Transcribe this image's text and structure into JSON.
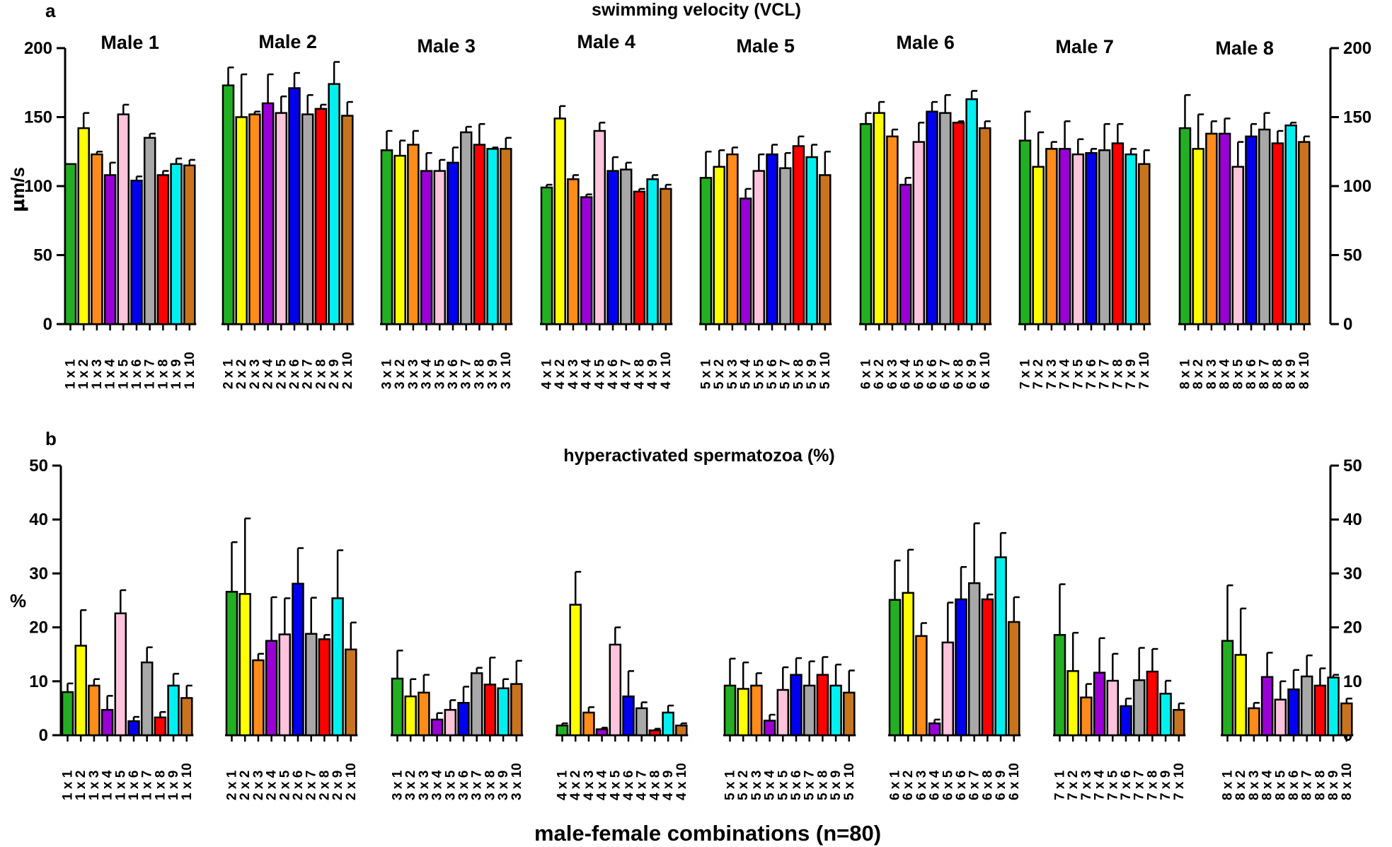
{
  "figure_xlabel": "male-female combinations (n=80)",
  "colors": [
    "#22b022",
    "#ffff00",
    "#ff8c1a",
    "#9a00d6",
    "#ffc4dc",
    "#0000f0",
    "#a8a8a8",
    "#ff0000",
    "#00f0f0",
    "#c8741e"
  ],
  "chart_data": [
    {
      "type": "bar",
      "panel": "a",
      "title": "swimming velocity (VCL)",
      "ylabel_prefix": "μ",
      "ylabel_suffix": "m/s",
      "ylim": [
        0,
        200
      ],
      "yticks": [
        0,
        50,
        100,
        150,
        200
      ],
      "groups": [
        {
          "name": "Male 1",
          "categories": [
            "1 x 1",
            "1 x 2",
            "1 x 3",
            "1 x 4",
            "1 x 5",
            "1 x 6",
            "1 x 7",
            "1 x 8",
            "1 x 9",
            "1 x 10"
          ],
          "values": [
            116,
            142,
            123,
            108,
            152,
            104,
            135,
            108,
            116,
            115
          ],
          "errors": [
            0,
            11,
            2,
            9,
            7,
            3,
            3,
            3,
            4,
            4
          ]
        },
        {
          "name": "Male 2",
          "categories": [
            "2 x 1",
            "2 x 2",
            "2 x 3",
            "2 x 4",
            "2 x 5",
            "2 x 6",
            "2 x 7",
            "2 x 8",
            "2 x 9",
            "2 x 10"
          ],
          "values": [
            173,
            150,
            152,
            160,
            153,
            171,
            152,
            156,
            174,
            151
          ],
          "errors": [
            13,
            31,
            2,
            21,
            12,
            11,
            14,
            3,
            16,
            10
          ]
        },
        {
          "name": "Male 3",
          "categories": [
            "3 x 1",
            "3 x 2",
            "3 x 3",
            "3 x 4",
            "3 x 5",
            "3 x 6",
            "3 x 7",
            "3 x 8",
            "3 x 9",
            "3 x 10"
          ],
          "values": [
            126,
            122,
            130,
            111,
            111,
            117,
            139,
            130,
            127,
            127
          ],
          "errors": [
            14,
            11,
            10,
            13,
            8,
            11,
            4,
            15,
            1,
            8
          ]
        },
        {
          "name": "Male 4",
          "categories": [
            "4 x 1",
            "4 x 2",
            "4 x 3",
            "4 x 4",
            "4 x 5",
            "4 x 6",
            "4 x 7",
            "4 x 8",
            "4 x 9",
            "4 x 10"
          ],
          "values": [
            99,
            149,
            105,
            92,
            140,
            111,
            112,
            96,
            105,
            98
          ],
          "errors": [
            2,
            9,
            3,
            2,
            6,
            10,
            5,
            2,
            3,
            3
          ]
        },
        {
          "name": "Male 5",
          "categories": [
            "5 x 1",
            "5 x 2",
            "5 x 3",
            "5 x 4",
            "5 x 5",
            "5 x 6",
            "5 x 7",
            "5 x 8",
            "5 x 9",
            "5 x 10"
          ],
          "values": [
            106,
            114,
            123,
            91,
            111,
            123,
            113,
            129,
            121,
            108
          ],
          "errors": [
            19,
            12,
            5,
            7,
            12,
            7,
            11,
            7,
            9,
            17
          ]
        },
        {
          "name": "Male 6",
          "categories": [
            "6 x 1",
            "6 x 2",
            "6 x 3",
            "6 x 4",
            "6 x 5",
            "6 x 6",
            "6 x 7",
            "6 x 8",
            "6 x 9",
            "6 x 10"
          ],
          "values": [
            145,
            153,
            136,
            101,
            132,
            154,
            153,
            146,
            163,
            142
          ],
          "errors": [
            8,
            8,
            5,
            5,
            14,
            7,
            13,
            1,
            6,
            5
          ]
        },
        {
          "name": "Male 7",
          "categories": [
            "7 x 1",
            "7 x 2",
            "7 x 3",
            "7 x 4",
            "7 x 5",
            "7 x 6",
            "7 x 7",
            "7 x 8",
            "7 x 9",
            "7 x 10"
          ],
          "values": [
            133,
            114,
            127,
            127,
            123,
            124,
            126,
            131,
            123,
            116
          ],
          "errors": [
            21,
            25,
            5,
            20,
            11,
            3,
            19,
            14,
            4,
            10
          ]
        },
        {
          "name": "Male 8",
          "categories": [
            "8 x 1",
            "8 x 2",
            "8 x 3",
            "8 x 4",
            "8 x 5",
            "8 x 6",
            "8 x 7",
            "8 x 8",
            "8 x 9",
            "8 x 10"
          ],
          "values": [
            142,
            127,
            138,
            138,
            114,
            136,
            141,
            131,
            144,
            132
          ],
          "errors": [
            24,
            25,
            9,
            11,
            18,
            9,
            12,
            9,
            2,
            4
          ]
        }
      ]
    },
    {
      "type": "bar",
      "panel": "b",
      "title": "hyperactivated spermatozoa (%)",
      "ylabel": "%",
      "ylim": [
        0,
        50
      ],
      "yticks": [
        0,
        10,
        20,
        30,
        40,
        50
      ],
      "groups": [
        {
          "name": "Male 1",
          "categories": [
            "1 x 1",
            "1 x 2",
            "1 x 3",
            "1 x 4",
            "1 x 5",
            "1 x 6",
            "1 x 7",
            "1 x 8",
            "1 x 9",
            "1 x 10"
          ],
          "values": [
            8,
            16.6,
            9.2,
            4.7,
            22.6,
            2.6,
            13.5,
            3.3,
            9.2,
            6.9
          ],
          "errors": [
            1.6,
            6.6,
            1.2,
            2.6,
            4.3,
            0.8,
            2.8,
            1.0,
            2.2,
            2.3
          ]
        },
        {
          "name": "Male 2",
          "categories": [
            "2 x 1",
            "2 x 2",
            "2 x 3",
            "2 x 4",
            "2 x 5",
            "2 x 6",
            "2 x 7",
            "2 x 8",
            "2 x 9",
            "2 x 10"
          ],
          "values": [
            26.6,
            26.2,
            13.9,
            17.5,
            18.7,
            28.1,
            18.8,
            17.8,
            25.4,
            15.9
          ],
          "errors": [
            9.2,
            14.0,
            1.2,
            8.1,
            6.7,
            6.6,
            6.7,
            0.8,
            8.9,
            5.0
          ]
        },
        {
          "name": "Male 3",
          "categories": [
            "3 x 1",
            "3 x 2",
            "3 x 3",
            "3 x 4",
            "3 x 5",
            "3 x 6",
            "3 x 7",
            "3 x 8",
            "3 x 9",
            "3 x 10"
          ],
          "values": [
            10.5,
            7.2,
            7.9,
            2.9,
            4.7,
            6.0,
            11.5,
            9.4,
            8.7,
            9.5
          ],
          "errors": [
            5.2,
            3.2,
            3.3,
            1.2,
            1.8,
            3.0,
            1.0,
            5.0,
            1.7,
            4.3
          ]
        },
        {
          "name": "Male 4",
          "categories": [
            "4 x 1",
            "4 x 2",
            "4 x 3",
            "4 x 4",
            "4 x 5",
            "4 x 6",
            "4 x 7",
            "4 x 8",
            "4 x 9",
            "4 x 10"
          ],
          "values": [
            1.8,
            24.2,
            4.2,
            1.1,
            16.8,
            7.2,
            5.0,
            0.9,
            4.2,
            1.8
          ],
          "errors": [
            0.4,
            6.1,
            1.0,
            0.3,
            3.2,
            4.7,
            1.1,
            0.3,
            1.3,
            0.4
          ]
        },
        {
          "name": "Male 5",
          "categories": [
            "5 x 1",
            "5 x 2",
            "5 x 3",
            "5 x 4",
            "5 x 5",
            "5 x 6",
            "5 x 7",
            "5 x 8",
            "5 x 9",
            "5 x 10"
          ],
          "values": [
            9.2,
            8.6,
            9.2,
            2.7,
            8.4,
            11.2,
            9.2,
            11.2,
            9.2,
            7.9
          ],
          "errors": [
            5.0,
            4.9,
            2.3,
            1.1,
            4.2,
            3.1,
            4.5,
            3.3,
            3.9,
            4.1
          ]
        },
        {
          "name": "Male 6",
          "categories": [
            "6 x 1",
            "6 x 2",
            "6 x 3",
            "6 x 4",
            "6 x 5",
            "6 x 6",
            "6 x 7",
            "6 x 8",
            "6 x 9",
            "6 x 10"
          ],
          "values": [
            25.1,
            26.4,
            18.4,
            2.2,
            17.2,
            25.2,
            28.2,
            25.2,
            33.0,
            21.0
          ],
          "errors": [
            7.3,
            8.0,
            2.4,
            0.7,
            7.4,
            6.0,
            11.1,
            0.9,
            4.5,
            4.6
          ]
        },
        {
          "name": "Male 7",
          "categories": [
            "7 x 1",
            "7 x 2",
            "7 x 3",
            "7 x 4",
            "7 x 5",
            "7 x 6",
            "7 x 7",
            "7 x 8",
            "7 x 9",
            "7 x 10"
          ],
          "values": [
            18.6,
            11.9,
            7.0,
            11.6,
            10.1,
            5.4,
            10.2,
            11.8,
            7.7,
            4.7
          ],
          "errors": [
            9.4,
            7.1,
            2.5,
            6.4,
            5.0,
            1.4,
            6.0,
            4.2,
            2.4,
            1.2
          ]
        },
        {
          "name": "Male 8",
          "categories": [
            "8 x 1",
            "8 x 2",
            "8 x 3",
            "8 x 4",
            "8 x 5",
            "8 x 6",
            "8 x 7",
            "8 x 8",
            "8 x 9",
            "8 x 10"
          ],
          "values": [
            17.5,
            14.9,
            5.0,
            10.8,
            6.6,
            8.5,
            10.9,
            9.2,
            10.7,
            5.9
          ],
          "errors": [
            10.3,
            8.6,
            1.0,
            4.5,
            3.4,
            3.6,
            3.9,
            3.2,
            0.5,
            0.9
          ]
        }
      ]
    }
  ]
}
